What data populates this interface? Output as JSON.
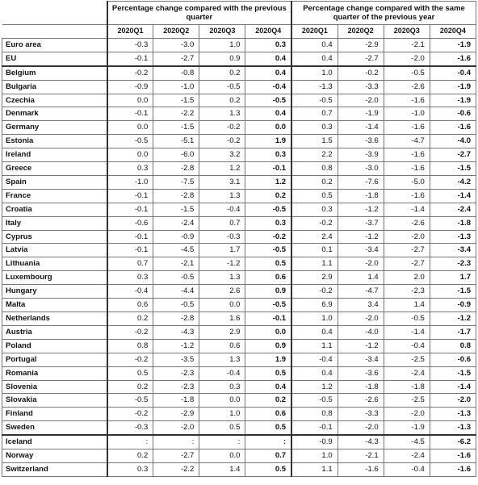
{
  "table": {
    "group_headers": [
      "Percentage change compared with the previous quarter",
      "Percentage change compared with the same quarter of the previous year"
    ],
    "quarters": [
      "2020Q1",
      "2020Q2",
      "2020Q3",
      "2020Q4",
      "2020Q1",
      "2020Q2",
      "2020Q3",
      "2020Q4"
    ],
    "rows": [
      [
        "Euro area",
        "-0.3",
        "-3.0",
        "1.0",
        "0.3",
        "0.4",
        "-2.9",
        "-2.1",
        "-1.9"
      ],
      [
        "EU",
        "-0.1",
        "-2.7",
        "0.9",
        "0.4",
        "0.4",
        "-2.7",
        "-2.0",
        "-1.6"
      ],
      [
        "Belgium",
        "-0.2",
        "-0.8",
        "0.2",
        "0.4",
        "1.0",
        "-0.2",
        "-0.5",
        "-0.4"
      ],
      [
        "Bulgaria",
        "-0.9",
        "-1.0",
        "-0.5",
        "-0.4",
        "-1.3",
        "-3.3",
        "-2.6",
        "-1.9"
      ],
      [
        "Czechia",
        "0.0",
        "-1.5",
        "0.2",
        "-0.5",
        "-0.5",
        "-2.0",
        "-1.6",
        "-1.9"
      ],
      [
        "Denmark",
        "-0.1",
        "-2.2",
        "1.3",
        "0.4",
        "0.7",
        "-1.9",
        "-1.0",
        "-0.6"
      ],
      [
        "Germany",
        "0.0",
        "-1.5",
        "-0.2",
        "0.0",
        "0.3",
        "-1.4",
        "-1.6",
        "-1.6"
      ],
      [
        "Estonia",
        "-0.5",
        "-5.1",
        "-0.2",
        "1.9",
        "1.5",
        "-3.6",
        "-4.7",
        "-4.0"
      ],
      [
        "Ireland",
        "0.0",
        "-6.0",
        "3.2",
        "0.3",
        "2.2",
        "-3.9",
        "-1.6",
        "-2.7"
      ],
      [
        "Greece",
        "0.3",
        "-2.8",
        "1.2",
        "-0.1",
        "0.8",
        "-3.0",
        "-1.6",
        "-1.5"
      ],
      [
        "Spain",
        "-1.0",
        "-7.5",
        "3.1",
        "1.2",
        "0.2",
        "-7.6",
        "-5.0",
        "-4.2"
      ],
      [
        "France",
        "-0.1",
        "-2.8",
        "1.3",
        "0.2",
        "0.5",
        "-1.8",
        "-1.6",
        "-1.4"
      ],
      [
        "Croatia",
        "-0.1",
        "-1.5",
        "-0.4",
        "-0.5",
        "0.3",
        "-1.2",
        "-1.4",
        "-2.4"
      ],
      [
        "Italy",
        "-0.6",
        "-2.4",
        "0.7",
        "0.3",
        "-0.2",
        "-3.7",
        "-2.6",
        "-1.8"
      ],
      [
        "Cyprus",
        "-0.1",
        "-0.9",
        "-0.3",
        "-0.2",
        "2.4",
        "-1.2",
        "-2.0",
        "-1.3"
      ],
      [
        "Latvia",
        "-0.1",
        "-4.5",
        "1.7",
        "-0.5",
        "0.1",
        "-3.4",
        "-2.7",
        "-3.4"
      ],
      [
        "Lithuania",
        "0.7",
        "-2.1",
        "-1.2",
        "0.5",
        "1.1",
        "-2.0",
        "-2.7",
        "-2.3"
      ],
      [
        "Luxembourg",
        "0.3",
        "-0.5",
        "1.3",
        "0.6",
        "2.9",
        "1.4",
        "2.0",
        "1.7"
      ],
      [
        "Hungary",
        "-0.4",
        "-4.4",
        "2.6",
        "0.9",
        "-0.2",
        "-4.7",
        "-2.3",
        "-1.5"
      ],
      [
        "Malta",
        "0.6",
        "-0.5",
        "0.0",
        "-0.5",
        "6.9",
        "3.4",
        "1.4",
        "-0.9"
      ],
      [
        "Netherlands",
        "0.2",
        "-2.8",
        "1.6",
        "-0.1",
        "1.0",
        "-2.0",
        "-0.5",
        "-1.2"
      ],
      [
        "Austria",
        "-0.2",
        "-4.3",
        "2.9",
        "0.0",
        "0.4",
        "-4.0",
        "-1.4",
        "-1.7"
      ],
      [
        "Poland",
        "0.8",
        "-1.2",
        "0.6",
        "0.9",
        "1.1",
        "-1.2",
        "-0.4",
        "0.8"
      ],
      [
        "Portugal",
        "-0.2",
        "-3.5",
        "1.3",
        "1.9",
        "-0.4",
        "-3.4",
        "-2.5",
        "-0.6"
      ],
      [
        "Romania",
        "0.5",
        "-2.3",
        "-0.4",
        "0.5",
        "0.4",
        "-3.6",
        "-2.4",
        "-1.5"
      ],
      [
        "Slovenia",
        "0.2",
        "-2.3",
        "0.3",
        "0.4",
        "1.2",
        "-1.8",
        "-1.8",
        "-1.4"
      ],
      [
        "Slovakia",
        "-0.5",
        "-1.8",
        "0.0",
        "0.2",
        "-0.5",
        "-2.6",
        "-2.5",
        "-2.0"
      ],
      [
        "Finland",
        "-0.2",
        "-2.9",
        "1.0",
        "0.6",
        "0.8",
        "-3.3",
        "-2.0",
        "-1.3"
      ],
      [
        "Sweden",
        "-0.3",
        "-2.0",
        "0.5",
        "0.5",
        "-0.1",
        "-2.0",
        "-1.9",
        "-1.3"
      ],
      [
        "Iceland",
        ":",
        ":",
        ":",
        ":",
        "-0.9",
        "-4.3",
        "-4.5",
        "-6.2"
      ],
      [
        "Norway",
        "0.2",
        "-2.7",
        "0.0",
        "0.7",
        "1.0",
        "-2.1",
        "-2.4",
        "-1.6"
      ],
      [
        "Switzerland",
        "0.3",
        "-2.2",
        "1.4",
        "0.5",
        "1.1",
        "-1.6",
        "-0.4",
        "-1.6"
      ]
    ]
  }
}
